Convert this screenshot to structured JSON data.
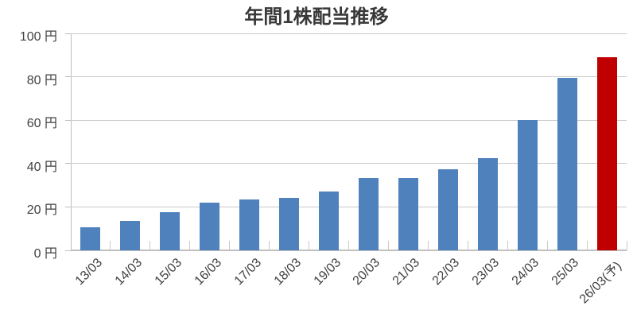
{
  "chart_data": {
    "type": "bar",
    "title": "年間1株配当推移",
    "unit": "円",
    "categories": [
      "13/03",
      "14/03",
      "15/03",
      "16/03",
      "17/03",
      "18/03",
      "19/03",
      "20/03",
      "21/03",
      "22/03",
      "23/03",
      "24/03",
      "25/03",
      "26/03(予)"
    ],
    "values": [
      10.5,
      13.5,
      17.5,
      22,
      23.5,
      24,
      27,
      33.5,
      33.5,
      37.5,
      42.5,
      60,
      79.5,
      89
    ],
    "xlabel": "",
    "ylabel": "",
    "ylim": [
      0,
      100
    ],
    "ytick_interval": 20,
    "ytick_labels": [
      "0 円",
      "20 円",
      "40 円",
      "60 円",
      "80 円",
      "100 円"
    ],
    "grid": true,
    "legend": "none",
    "bar_color": "#4f81bd",
    "highlight_color": "#c00000",
    "highlight_index": 13,
    "highlight_meaning": "forecast (予) bar",
    "text_color": "#404040",
    "gridline_color": "#c9c9c9",
    "axis_color": "#bfbfbf"
  }
}
